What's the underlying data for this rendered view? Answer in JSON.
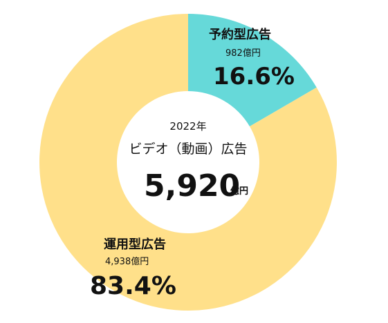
{
  "chart_data": {
    "type": "pie",
    "center": {
      "year": "2022年",
      "title": "ビデオ（動画）広告",
      "total": "5,920",
      "unit": "億円"
    },
    "slices": [
      {
        "label": "予約型広告",
        "amount": "982億円",
        "percent_label": "16.6%",
        "value": 16.6,
        "color": "#66D9D9"
      },
      {
        "label": "運用型広告",
        "amount": "4,938億円",
        "percent_label": "83.4%",
        "value": 83.4,
        "color": "#FFE08A"
      }
    ]
  }
}
